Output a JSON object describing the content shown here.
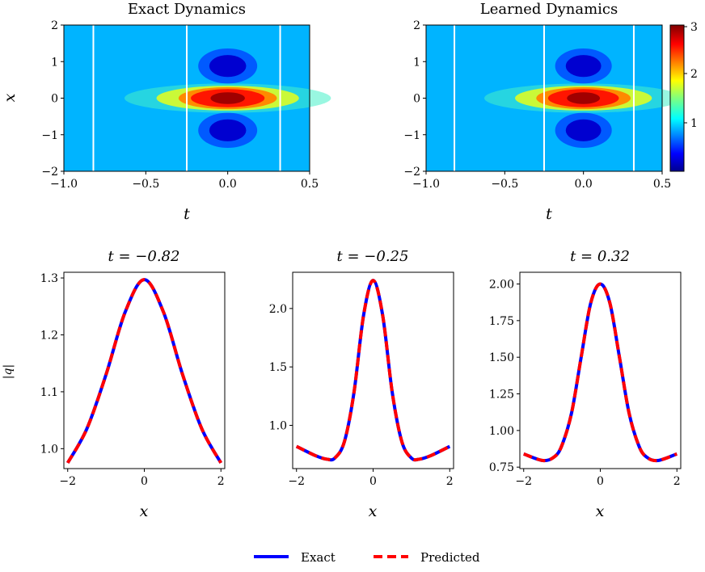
{
  "figure": {
    "heatmaps": [
      {
        "title": "Exact Dynamics"
      },
      {
        "title": "Learned Dynamics"
      }
    ],
    "heatmap_xlabel": "t",
    "heatmap_ylabel": "x",
    "colorbar": {
      "ticks": [
        "1",
        "2",
        "3"
      ]
    },
    "profiles": [
      {
        "title": "t = −0.82"
      },
      {
        "title": "t = −0.25"
      },
      {
        "title": "t = 0.32"
      }
    ],
    "profile_xlabel": "x",
    "profile_ylabel": "|q|",
    "legend": {
      "exact": "Exact",
      "predicted": "Predicted"
    }
  },
  "colors": {
    "exact": "#0000ff",
    "predicted": "#ff0000",
    "snapshot_line": "#ffffff"
  },
  "chart_data": [
    {
      "type": "heatmap",
      "title": "Exact Dynamics",
      "xlabel": "t",
      "ylabel": "x",
      "xlim": [
        -1.0,
        0.5
      ],
      "ylim": [
        -2,
        2
      ],
      "xticks": [
        -1.0,
        -0.5,
        0.0,
        0.5
      ],
      "yticks": [
        -2,
        -1,
        0,
        1,
        2
      ],
      "snapshot_lines_t": [
        -0.82,
        -0.25,
        0.32
      ],
      "colormap": "jet",
      "clim": [
        0.3,
        3.0
      ]
    },
    {
      "type": "heatmap",
      "title": "Learned Dynamics",
      "xlabel": "t",
      "ylabel": "x",
      "xlim": [
        -1.0,
        0.5
      ],
      "ylim": [
        -2,
        2
      ],
      "xticks": [
        -1.0,
        -0.5,
        0.0,
        0.5
      ],
      "yticks": [
        -2,
        -1,
        0,
        1,
        2
      ],
      "snapshot_lines_t": [
        -0.82,
        -0.25,
        0.32
      ],
      "colormap": "jet",
      "clim": [
        0.3,
        3.0
      ],
      "colorbar_ticks": [
        1,
        2,
        3
      ]
    },
    {
      "type": "line",
      "title": "t = −0.82",
      "xlabel": "x",
      "ylabel": "|q|",
      "xlim": [
        -2.1,
        2.1
      ],
      "ylim": [
        0.965,
        1.31
      ],
      "xticks": [
        -2,
        0,
        2
      ],
      "yticks": [
        1.0,
        1.1,
        1.2,
        1.3
      ],
      "x": [
        -2.0,
        -1.5,
        -1.0,
        -0.5,
        0.0,
        0.5,
        1.0,
        1.5,
        2.0
      ],
      "series": [
        {
          "name": "Exact",
          "values": [
            0.975,
            1.035,
            1.13,
            1.24,
            1.297,
            1.24,
            1.13,
            1.035,
            0.975
          ]
        },
        {
          "name": "Predicted",
          "values": [
            0.975,
            1.035,
            1.13,
            1.24,
            1.297,
            1.24,
            1.13,
            1.035,
            0.975
          ]
        }
      ]
    },
    {
      "type": "line",
      "title": "t = −0.25",
      "xlabel": "x",
      "ylabel": "|q|",
      "xlim": [
        -2.1,
        2.1
      ],
      "ylim": [
        0.63,
        2.31
      ],
      "xticks": [
        -2,
        0,
        2
      ],
      "yticks": [
        1.0,
        1.5,
        2.0
      ],
      "x": [
        -2.0,
        -1.5,
        -1.2,
        -1.0,
        -0.75,
        -0.5,
        -0.25,
        0.0,
        0.25,
        0.5,
        0.75,
        1.0,
        1.2,
        1.5,
        2.0
      ],
      "series": [
        {
          "name": "Exact",
          "values": [
            0.82,
            0.74,
            0.71,
            0.72,
            0.86,
            1.28,
            1.94,
            2.24,
            1.94,
            1.28,
            0.86,
            0.72,
            0.71,
            0.74,
            0.82
          ]
        },
        {
          "name": "Predicted",
          "values": [
            0.82,
            0.74,
            0.71,
            0.72,
            0.86,
            1.28,
            1.94,
            2.24,
            1.94,
            1.28,
            0.86,
            0.72,
            0.71,
            0.74,
            0.82
          ]
        }
      ]
    },
    {
      "type": "line",
      "title": "t = 0.32",
      "xlabel": "x",
      "ylabel": "|q|",
      "xlim": [
        -2.1,
        2.1
      ],
      "ylim": [
        0.74,
        2.08
      ],
      "xticks": [
        -2,
        0,
        2
      ],
      "yticks": [
        0.75,
        1.0,
        1.25,
        1.5,
        1.75,
        2.0
      ],
      "x": [
        -2.0,
        -1.5,
        -1.2,
        -1.0,
        -0.75,
        -0.5,
        -0.25,
        0.0,
        0.25,
        0.5,
        0.75,
        1.0,
        1.2,
        1.5,
        2.0
      ],
      "series": [
        {
          "name": "Exact",
          "values": [
            0.84,
            0.795,
            0.82,
            0.9,
            1.12,
            1.5,
            1.87,
            2.0,
            1.87,
            1.5,
            1.12,
            0.9,
            0.82,
            0.795,
            0.84
          ]
        },
        {
          "name": "Predicted",
          "values": [
            0.84,
            0.795,
            0.82,
            0.9,
            1.12,
            1.5,
            1.87,
            2.0,
            1.87,
            1.5,
            1.12,
            0.9,
            0.82,
            0.795,
            0.84
          ]
        }
      ]
    }
  ]
}
